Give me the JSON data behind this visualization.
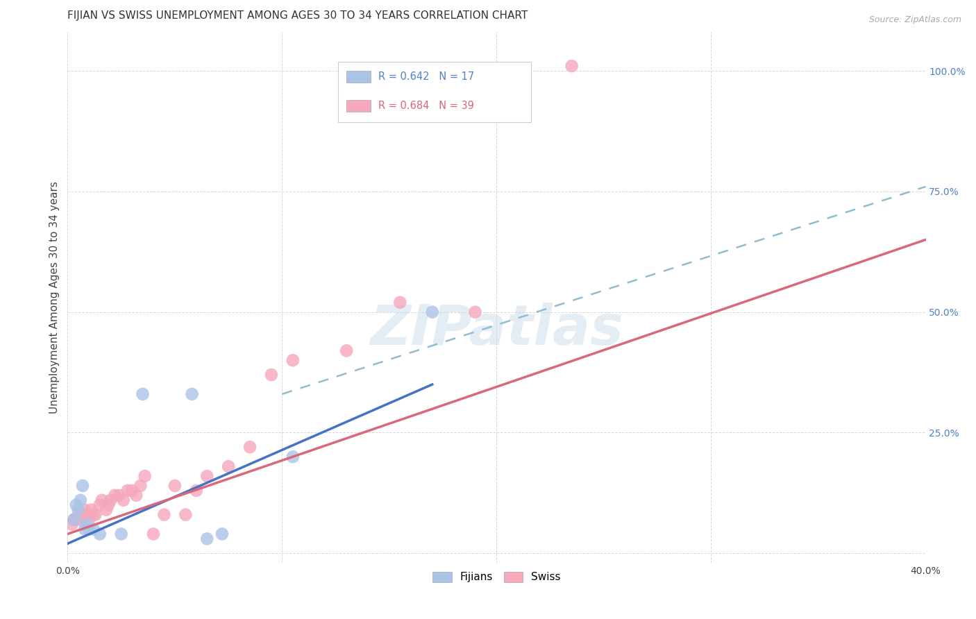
{
  "title": "FIJIAN VS SWISS UNEMPLOYMENT AMONG AGES 30 TO 34 YEARS CORRELATION CHART",
  "source": "Source: ZipAtlas.com",
  "ylabel": "Unemployment Among Ages 30 to 34 years",
  "xlim": [
    0.0,
    0.4
  ],
  "ylim": [
    -0.02,
    1.08
  ],
  "xticks": [
    0.0,
    0.1,
    0.2,
    0.3,
    0.4
  ],
  "yticks": [
    0.0,
    0.25,
    0.5,
    0.75,
    1.0
  ],
  "yticklabels": [
    "",
    "25.0%",
    "50.0%",
    "75.0%",
    "100.0%"
  ],
  "watermark": "ZIPatlas",
  "fijian_R": 0.642,
  "fijian_N": 17,
  "swiss_R": 0.684,
  "swiss_N": 39,
  "fijian_color": "#aac4e8",
  "swiss_color": "#f5a8bc",
  "fijian_line_color": "#4472c4",
  "swiss_line_color": "#d9687a",
  "dashed_line_color": "#90bcd0",
  "background_color": "#ffffff",
  "grid_color": "#d8d8d8",
  "title_fontsize": 11,
  "ylabel_fontsize": 11,
  "tick_fontsize": 10,
  "tick_color_y": "#5080c8",
  "fijian_points": [
    [
      0.003,
      0.07
    ],
    [
      0.004,
      0.1
    ],
    [
      0.005,
      0.09
    ],
    [
      0.006,
      0.11
    ],
    [
      0.007,
      0.14
    ],
    [
      0.008,
      0.05
    ],
    [
      0.009,
      0.06
    ],
    [
      0.01,
      0.05
    ],
    [
      0.012,
      0.05
    ],
    [
      0.015,
      0.04
    ],
    [
      0.025,
      0.04
    ],
    [
      0.035,
      0.33
    ],
    [
      0.058,
      0.33
    ],
    [
      0.065,
      0.03
    ],
    [
      0.072,
      0.04
    ],
    [
      0.105,
      0.2
    ],
    [
      0.17,
      0.5
    ]
  ],
  "swiss_points": [
    [
      0.002,
      0.06
    ],
    [
      0.003,
      0.07
    ],
    [
      0.004,
      0.07
    ],
    [
      0.005,
      0.08
    ],
    [
      0.006,
      0.07
    ],
    [
      0.007,
      0.08
    ],
    [
      0.008,
      0.09
    ],
    [
      0.009,
      0.08
    ],
    [
      0.01,
      0.07
    ],
    [
      0.011,
      0.09
    ],
    [
      0.012,
      0.08
    ],
    [
      0.013,
      0.08
    ],
    [
      0.015,
      0.1
    ],
    [
      0.016,
      0.11
    ],
    [
      0.018,
      0.09
    ],
    [
      0.019,
      0.1
    ],
    [
      0.02,
      0.11
    ],
    [
      0.022,
      0.12
    ],
    [
      0.024,
      0.12
    ],
    [
      0.026,
      0.11
    ],
    [
      0.028,
      0.13
    ],
    [
      0.03,
      0.13
    ],
    [
      0.032,
      0.12
    ],
    [
      0.034,
      0.14
    ],
    [
      0.036,
      0.16
    ],
    [
      0.04,
      0.04
    ],
    [
      0.045,
      0.08
    ],
    [
      0.05,
      0.14
    ],
    [
      0.055,
      0.08
    ],
    [
      0.06,
      0.13
    ],
    [
      0.065,
      0.16
    ],
    [
      0.075,
      0.18
    ],
    [
      0.085,
      0.22
    ],
    [
      0.095,
      0.37
    ],
    [
      0.105,
      0.4
    ],
    [
      0.13,
      0.42
    ],
    [
      0.155,
      0.52
    ],
    [
      0.19,
      0.5
    ],
    [
      0.235,
      1.01
    ]
  ],
  "fijian_line_x": [
    0.0,
    0.17
  ],
  "fijian_line_y": [
    0.02,
    0.35
  ],
  "swiss_line_x": [
    0.0,
    0.4
  ],
  "swiss_line_y": [
    0.04,
    0.65
  ],
  "dashed_line_x": [
    0.1,
    0.4
  ],
  "dashed_line_y": [
    0.33,
    0.76
  ]
}
